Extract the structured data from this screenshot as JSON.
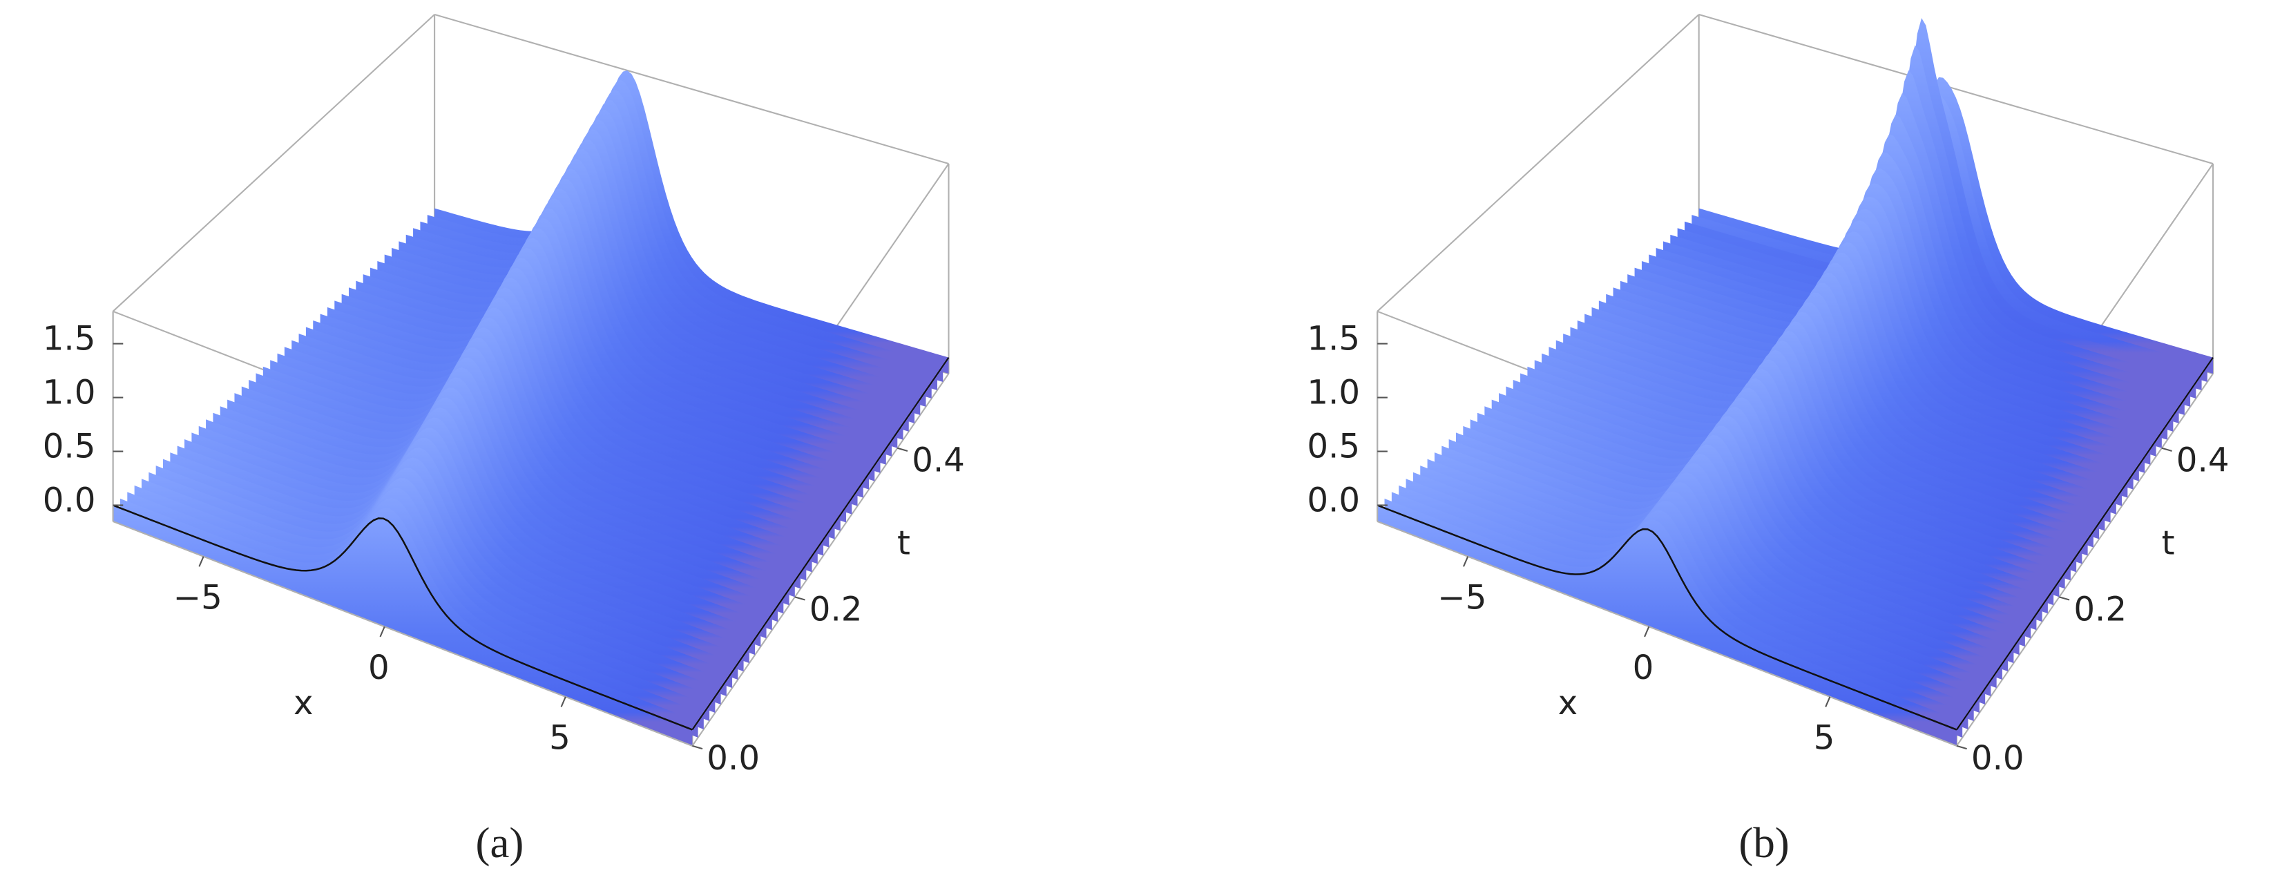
{
  "chart_data": [
    {
      "type": "surface3d",
      "caption": "(a)",
      "xlabel": "x",
      "ylabel": "t",
      "xlim": [
        -7.5,
        8.5
      ],
      "ylim": [
        0,
        0.5
      ],
      "zlim": [
        -0.15,
        1.8
      ],
      "xticks": [
        {
          "value": -5,
          "label": "−5"
        },
        0,
        5
      ],
      "yticks": [
        {
          "value": 0,
          "label": "0.0"
        },
        {
          "value": 0.2,
          "label": "0.2"
        },
        {
          "value": 0.4,
          "label": "0.4"
        }
      ],
      "zticks": [
        {
          "value": 0,
          "label": "0.0"
        },
        {
          "value": 0.5,
          "label": "0.5"
        },
        {
          "value": 1,
          "label": "1.0"
        },
        {
          "value": 1.5,
          "label": "1.5"
        }
      ],
      "color": "#4d6af2"
    },
    {
      "type": "surface3d",
      "caption": "(b)",
      "xlabel": "x",
      "ylabel": "t",
      "xlim": [
        -7.5,
        8.5
      ],
      "ylim": [
        0,
        0.5
      ],
      "zlim": [
        -0.15,
        1.8
      ],
      "xticks": [
        {
          "value": -5,
          "label": "−5"
        },
        0,
        5
      ],
      "yticks": [
        {
          "value": 0,
          "label": "0.0"
        },
        {
          "value": 0.2,
          "label": "0.2"
        },
        {
          "value": 0.4,
          "label": "0.4"
        }
      ],
      "zticks": [
        {
          "value": 0,
          "label": "0.0"
        },
        {
          "value": 0.5,
          "label": "0.5"
        },
        {
          "value": 1,
          "label": "1.0"
        },
        {
          "value": 1.5,
          "label": "1.5"
        }
      ],
      "color": "#4d6af2"
    }
  ]
}
